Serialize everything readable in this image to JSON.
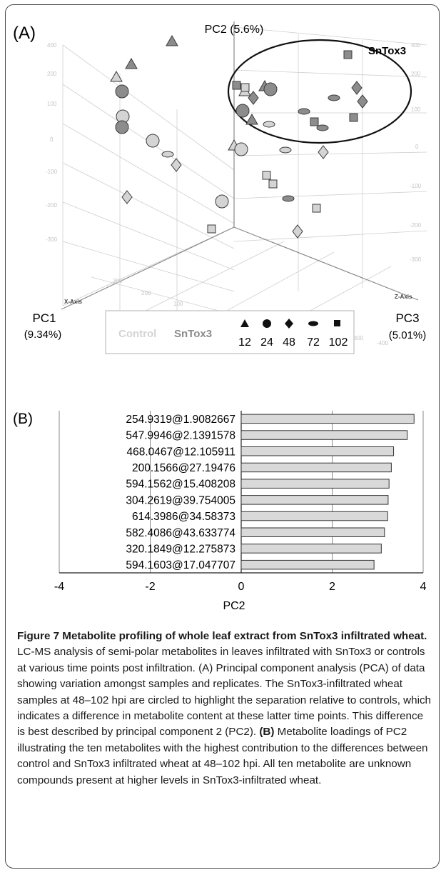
{
  "panel_a": {
    "label": "(A)",
    "pc2_axis": "PC2 (5.6%)",
    "pc1_axis": "PC1",
    "pc1_pct": "(9.34%)",
    "pc3_axis": "PC3",
    "pc3_pct": "(5.01%)",
    "x_axis_tag": "X-Axis",
    "z_axis_tag": "Z-Axis",
    "circle_label": "SnTox3",
    "legend": {
      "control": "Control",
      "sntox3": "SnTox3",
      "timepoints": [
        "12",
        "24",
        "48",
        "72",
        "102"
      ]
    },
    "colors": {
      "control": "#d4d4d4",
      "sntox3": "#8c8c8c",
      "edge": "#3a3a3a"
    }
  },
  "chart_data": {
    "type": "bar",
    "orientation": "horizontal",
    "panel_label": "(B)",
    "categories": [
      "254.9319@1.9082667",
      "547.9946@2.1391578",
      "468.0467@12.105911",
      "200.1566@27.19476",
      "594.1562@15.408208",
      "304.2619@39.754005",
      "614.3986@34.58373",
      "582.4086@43.633774",
      "320.1849@12.275873",
      "594.1603@17.047707"
    ],
    "values": [
      3.8,
      3.65,
      3.35,
      3.3,
      3.25,
      3.23,
      3.22,
      3.15,
      3.08,
      2.92
    ],
    "xlabel": "PC2",
    "xlim": [
      -4,
      4
    ],
    "xticks": [
      "-4",
      "-2",
      "0",
      "2",
      "4"
    ],
    "bar_color": "#d9d9d9",
    "grid": true
  },
  "caption": {
    "title": "Figure 7 Metabolite profiling of whole leaf extract from SnTox3 infiltrated wheat.",
    "body_a": " LC-MS analysis of semi-polar metabolites in leaves infiltrated with SnTox3 or controls at various time points post infiltration. (A) Principal component analysis (PCA) of data showing variation amongst samples and replicates. The SnTox3-infiltrated wheat samples at 48–102 hpi are circled to highlight the separation relative to controls, which indicates a difference in metabolite content at these latter time points. This difference is best described by principal component 2 (PC2). ",
    "b_label": "(B)",
    "body_b": " Metabolite loadings of PC2 illustrating the ten metabolites with the highest contribution to the differences between control and SnTox3 infiltrated wheat at 48–102 hpi. All ten metabolite are unknown compounds present at higher levels in SnTox3-infiltrated wheat."
  }
}
